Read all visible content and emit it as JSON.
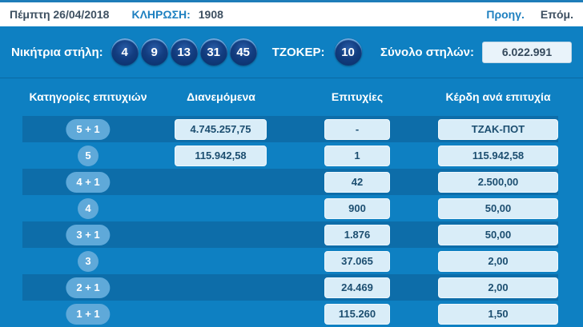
{
  "header": {
    "date": "Πέμπτη 26/04/2018",
    "draw_label": "ΚΛΗΡΩΣΗ:",
    "draw_number": "1908",
    "prev_label": "Προηγ.",
    "next_label": "Επόμ."
  },
  "winning_numbers": {
    "label": "Νικήτρια στήλη:",
    "numbers": [
      "4",
      "9",
      "13",
      "31",
      "45"
    ],
    "joker_label": "ΤΖΟΚΕΡ:",
    "joker_number": "10",
    "total_columns_label": "Σύνολο στηλών:",
    "total_columns_value": "6.022.991"
  },
  "table": {
    "headers": [
      "Κατηγορίες επιτυχιών",
      "Διανεμόμενα",
      "Επιτυχίες",
      "Κέρδη ανά επιτυχία"
    ],
    "rows": [
      {
        "category": "5 + 1",
        "distributed": "4.745.257,75",
        "wins": "-",
        "prize": "ΤΖΑΚ-ΠΟΤ"
      },
      {
        "category": "5",
        "distributed": "115.942,58",
        "wins": "1",
        "prize": "115.942,58"
      },
      {
        "category": "4 + 1",
        "distributed": "",
        "wins": "42",
        "prize": "2.500,00"
      },
      {
        "category": "4",
        "distributed": "",
        "wins": "900",
        "prize": "50,00"
      },
      {
        "category": "3 + 1",
        "distributed": "",
        "wins": "1.876",
        "prize": "50,00"
      },
      {
        "category": "3",
        "distributed": "",
        "wins": "37.065",
        "prize": "2,00"
      },
      {
        "category": "2 + 1",
        "distributed": "",
        "wins": "24.469",
        "prize": "2,00"
      },
      {
        "category": "1 + 1",
        "distributed": "",
        "wins": "115.260",
        "prize": "1,50"
      }
    ]
  },
  "colors": {
    "panel_blue": "#0e80c2",
    "stripe_blue": "#0d6da9",
    "link_blue": "#1e80c0",
    "pill_blue": "#5fa9d9",
    "ball_navy": "#0a2e66",
    "box_light": "#d9edf8",
    "text_dark": "#3e5061"
  }
}
